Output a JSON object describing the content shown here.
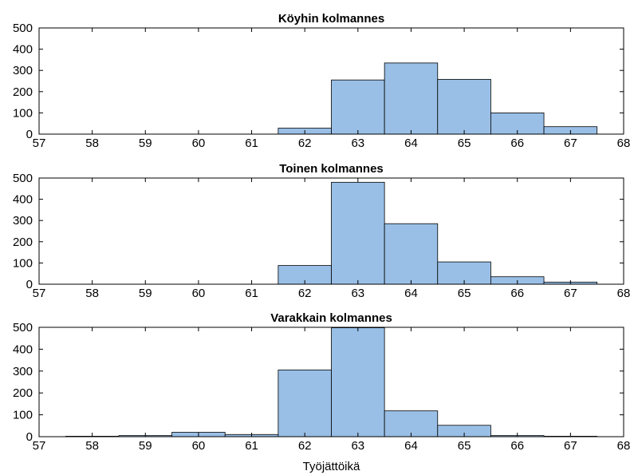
{
  "chart_data": [
    {
      "type": "bar",
      "title": "Köyhin kolmannes",
      "xlabel": "",
      "ylabel": "",
      "x": [
        58,
        59,
        60,
        61,
        62,
        63,
        64,
        65,
        66,
        67
      ],
      "values": [
        0,
        0,
        0,
        0,
        28,
        255,
        335,
        258,
        100,
        35
      ],
      "xlim": [
        57,
        68
      ],
      "ylim": [
        0,
        500
      ],
      "xticks": [
        57,
        58,
        59,
        60,
        61,
        62,
        63,
        64,
        65,
        66,
        67,
        68
      ],
      "yticks": [
        0,
        100,
        200,
        300,
        400,
        500
      ],
      "grid": false,
      "color": "#99bfe6"
    },
    {
      "type": "bar",
      "title": "Toinen kolmannes",
      "xlabel": "",
      "ylabel": "",
      "x": [
        58,
        59,
        60,
        61,
        62,
        63,
        64,
        65,
        66,
        67
      ],
      "values": [
        0,
        0,
        0,
        0,
        88,
        480,
        285,
        105,
        35,
        10
      ],
      "xlim": [
        57,
        68
      ],
      "ylim": [
        0,
        500
      ],
      "xticks": [
        57,
        58,
        59,
        60,
        61,
        62,
        63,
        64,
        65,
        66,
        67,
        68
      ],
      "yticks": [
        0,
        100,
        200,
        300,
        400,
        500
      ],
      "grid": false,
      "color": "#99bfe6"
    },
    {
      "type": "bar",
      "title": "Varakkain kolmannes",
      "xlabel": "Työjättöikä",
      "ylabel": "",
      "x": [
        58,
        59,
        60,
        61,
        62,
        63,
        64,
        65,
        66,
        67
      ],
      "values": [
        2,
        5,
        20,
        10,
        305,
        498,
        118,
        52,
        5,
        2
      ],
      "xlim": [
        57,
        68
      ],
      "ylim": [
        0,
        500
      ],
      "xticks": [
        57,
        58,
        59,
        60,
        61,
        62,
        63,
        64,
        65,
        66,
        67,
        68
      ],
      "yticks": [
        0,
        100,
        200,
        300,
        400,
        500
      ],
      "grid": false,
      "color": "#99bfe6"
    }
  ]
}
